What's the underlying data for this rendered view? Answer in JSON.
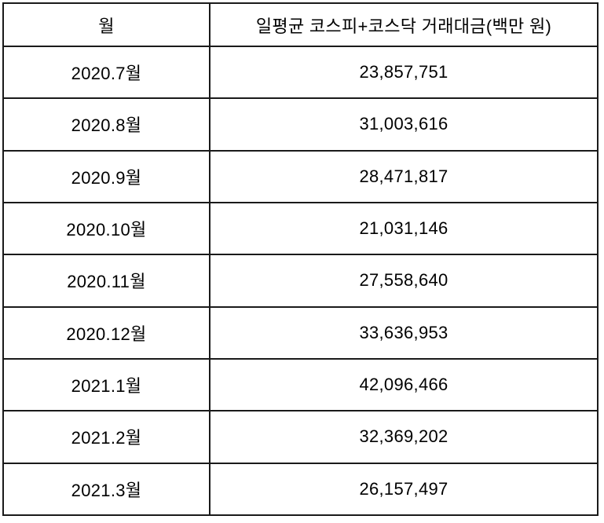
{
  "table": {
    "headers": {
      "month": "월",
      "value": "일평균 코스피+코스닥 거래대금(백만 원)"
    },
    "rows": [
      {
        "month": "2020.7월",
        "value": "23,857,751"
      },
      {
        "month": "2020.8월",
        "value": "31,003,616"
      },
      {
        "month": "2020.9월",
        "value": "28,471,817"
      },
      {
        "month": "2020.10월",
        "value": "21,031,146"
      },
      {
        "month": "2020.11월",
        "value": "27,558,640"
      },
      {
        "month": "2020.12월",
        "value": "33,636,953"
      },
      {
        "month": "2021.1월",
        "value": "42,096,466"
      },
      {
        "month": "2021.2월",
        "value": "32,369,202"
      },
      {
        "month": "2021.3월",
        "value": "26,157,497"
      }
    ],
    "border_color": "#1a1a1a"
  }
}
